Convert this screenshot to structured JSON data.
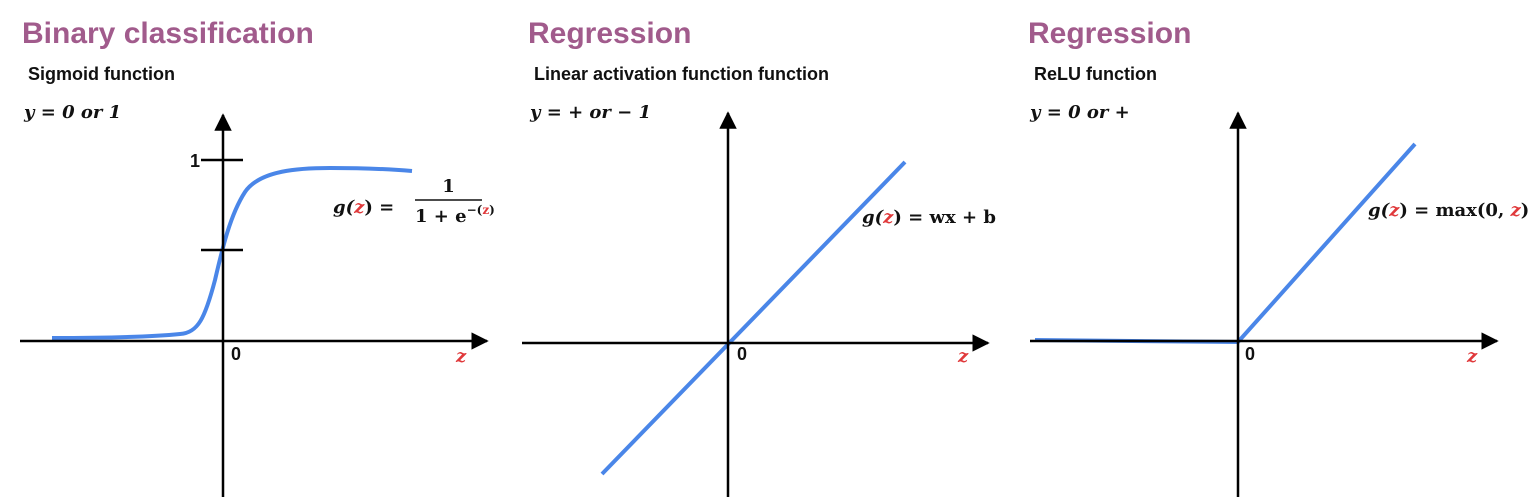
{
  "panels": [
    {
      "title": "Binary classification",
      "subtitle": "Sigmoid function",
      "output": "y = 0 or 1",
      "tick_label": "1",
      "origin_label": "0",
      "axis_label": "z",
      "formula": {
        "lhs": [
          "g(",
          "z",
          ") ="
        ],
        "numerator": "1",
        "denominator": [
          "1 + e",
          "−(",
          "z",
          ")"
        ]
      }
    },
    {
      "title": "Regression",
      "subtitle": "Linear activation function function",
      "output": "y = + or − 1",
      "origin_label": "0",
      "axis_label": "z",
      "formula": {
        "lhs": [
          "g(",
          "z",
          ") = wx + b"
        ]
      }
    },
    {
      "title": "Regression",
      "subtitle": "ReLU function",
      "output": "y = 0 or +",
      "origin_label": "0",
      "axis_label": "z",
      "formula": {
        "lhs": [
          "g(",
          "z",
          ") = max(0, ",
          "z",
          ")"
        ]
      }
    }
  ]
}
